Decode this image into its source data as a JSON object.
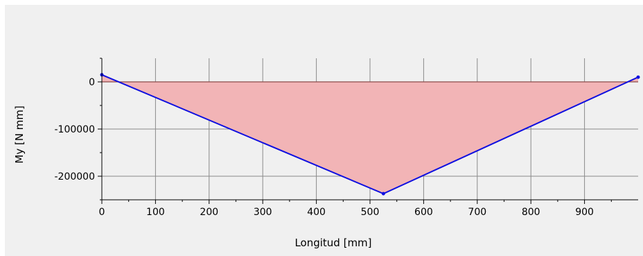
{
  "chart_data": {
    "type": "area",
    "xlabel": "Longitud [mm]",
    "ylabel": "My [N mm]",
    "xlim": [
      0,
      1000
    ],
    "ylim": [
      -250000,
      50000
    ],
    "x_ticks": [
      0,
      100,
      200,
      300,
      400,
      500,
      600,
      700,
      800,
      900
    ],
    "x_tick_labels": [
      "0",
      "100",
      "200",
      "300",
      "400",
      "500",
      "600",
      "700",
      "800",
      "900"
    ],
    "y_ticks": [
      0,
      -100000,
      -200000
    ],
    "y_tick_labels": [
      "0",
      "-100000",
      "-200000"
    ],
    "grid": true,
    "series": [
      {
        "x": [
          0,
          525,
          1000
        ],
        "y": [
          15000,
          -237000,
          10000
        ],
        "line_color": "#1010e0",
        "fill_color": "#f2b4b6"
      }
    ]
  }
}
